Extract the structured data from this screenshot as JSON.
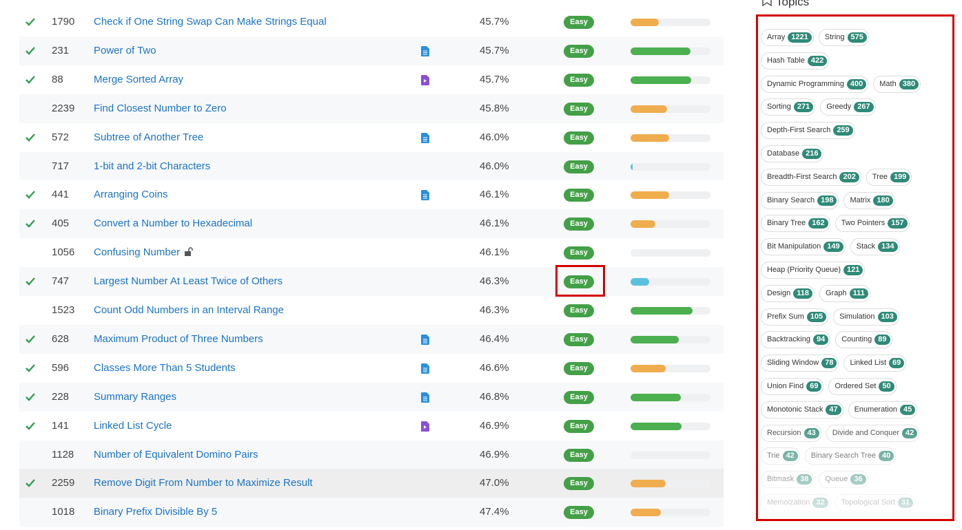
{
  "problems": [
    {
      "solved": true,
      "id": 1790,
      "title": "Check if One String Swap Can Make Strings Equal",
      "solution": null,
      "acceptance": "45.7%",
      "difficulty": "Easy",
      "frequency": 35,
      "frequency_color": "#f0ad4e"
    },
    {
      "solved": true,
      "id": 231,
      "title": "Power of Two",
      "solution": "article",
      "acceptance": "45.7%",
      "difficulty": "Easy",
      "frequency": 75,
      "frequency_color": "#4caf50"
    },
    {
      "solved": true,
      "id": 88,
      "title": "Merge Sorted Array",
      "solution": "video",
      "acceptance": "45.7%",
      "difficulty": "Easy",
      "frequency": 76,
      "frequency_color": "#4caf50"
    },
    {
      "solved": false,
      "id": 2239,
      "title": "Find Closest Number to Zero",
      "solution": null,
      "acceptance": "45.8%",
      "difficulty": "Easy",
      "frequency": 46,
      "frequency_color": "#f0ad4e"
    },
    {
      "solved": true,
      "id": 572,
      "title": "Subtree of Another Tree",
      "solution": "article",
      "acceptance": "46.0%",
      "difficulty": "Easy",
      "frequency": 48,
      "frequency_color": "#f0ad4e"
    },
    {
      "solved": false,
      "id": 717,
      "title": "1-bit and 2-bit Characters",
      "solution": null,
      "acceptance": "46.0%",
      "difficulty": "Easy",
      "frequency": 3,
      "frequency_color": "#5bc0de"
    },
    {
      "solved": true,
      "id": 441,
      "title": "Arranging Coins",
      "solution": "article",
      "acceptance": "46.1%",
      "difficulty": "Easy",
      "frequency": 48,
      "frequency_color": "#f0ad4e"
    },
    {
      "solved": true,
      "id": 405,
      "title": "Convert a Number to Hexadecimal",
      "solution": null,
      "acceptance": "46.1%",
      "difficulty": "Easy",
      "frequency": 31,
      "frequency_color": "#f0ad4e"
    },
    {
      "solved": false,
      "id": 1056,
      "title": "Confusing Number",
      "locked": true,
      "solution": null,
      "acceptance": "46.1%",
      "difficulty": "Easy",
      "frequency": 0,
      "frequency_color": "#f0ad4e"
    },
    {
      "solved": true,
      "id": 747,
      "title": "Largest Number At Least Twice of Others",
      "solution": null,
      "acceptance": "46.3%",
      "difficulty": "Easy",
      "frequency": 23,
      "frequency_color": "#5bc0de"
    },
    {
      "solved": false,
      "id": 1523,
      "title": "Count Odd Numbers in an Interval Range",
      "solution": null,
      "acceptance": "46.3%",
      "difficulty": "Easy",
      "frequency": 78,
      "frequency_color": "#4caf50"
    },
    {
      "solved": true,
      "id": 628,
      "title": "Maximum Product of Three Numbers",
      "solution": "article",
      "acceptance": "46.4%",
      "difficulty": "Easy",
      "frequency": 60,
      "frequency_color": "#4caf50"
    },
    {
      "solved": true,
      "id": 596,
      "title": "Classes More Than 5 Students",
      "solution": "article",
      "acceptance": "46.6%",
      "difficulty": "Easy",
      "frequency": 44,
      "frequency_color": "#f0ad4e"
    },
    {
      "solved": true,
      "id": 228,
      "title": "Summary Ranges",
      "solution": "article",
      "acceptance": "46.8%",
      "difficulty": "Easy",
      "frequency": 63,
      "frequency_color": "#4caf50"
    },
    {
      "solved": true,
      "id": 141,
      "title": "Linked List Cycle",
      "solution": "video",
      "acceptance": "46.9%",
      "difficulty": "Easy",
      "frequency": 64,
      "frequency_color": "#4caf50"
    },
    {
      "solved": false,
      "id": 1128,
      "title": "Number of Equivalent Domino Pairs",
      "solution": null,
      "acceptance": "46.9%",
      "difficulty": "Easy",
      "frequency": 0,
      "frequency_color": "#f0ad4e"
    },
    {
      "solved": true,
      "id": 2259,
      "title": "Remove Digit From Number to Maximize Result",
      "solution": null,
      "acceptance": "47.0%",
      "difficulty": "Easy",
      "frequency": 44,
      "frequency_color": "#f0ad4e"
    },
    {
      "solved": false,
      "id": 1018,
      "title": "Binary Prefix Divisible By 5",
      "solution": null,
      "acceptance": "47.4%",
      "difficulty": "Easy",
      "frequency": 38,
      "frequency_color": "#f0ad4e"
    }
  ],
  "topics_title": "Topics",
  "topics": [
    [
      {
        "name": "Array",
        "count": 1221
      },
      {
        "name": "String",
        "count": 575
      }
    ],
    [
      {
        "name": "Hash Table",
        "count": 422
      }
    ],
    [
      {
        "name": "Dynamic Programming",
        "count": 400
      },
      {
        "name": "Math",
        "count": 380
      }
    ],
    [
      {
        "name": "Sorting",
        "count": 271
      },
      {
        "name": "Greedy",
        "count": 267
      }
    ],
    [
      {
        "name": "Depth-First Search",
        "count": 259
      }
    ],
    [
      {
        "name": "Database",
        "count": 216
      }
    ],
    [
      {
        "name": "Breadth-First Search",
        "count": 202
      },
      {
        "name": "Tree",
        "count": 199
      }
    ],
    [
      {
        "name": "Binary Search",
        "count": 198
      },
      {
        "name": "Matrix",
        "count": 180
      }
    ],
    [
      {
        "name": "Binary Tree",
        "count": 162
      },
      {
        "name": "Two Pointers",
        "count": 157
      }
    ],
    [
      {
        "name": "Bit Manipulation",
        "count": 149
      },
      {
        "name": "Stack",
        "count": 134
      }
    ],
    [
      {
        "name": "Heap (Priority Queue)",
        "count": 121
      }
    ],
    [
      {
        "name": "Design",
        "count": 118
      },
      {
        "name": "Graph",
        "count": 111
      }
    ],
    [
      {
        "name": "Prefix Sum",
        "count": 105
      },
      {
        "name": "Simulation",
        "count": 103
      }
    ],
    [
      {
        "name": "Backtracking",
        "count": 94
      },
      {
        "name": "Counting",
        "count": 89
      }
    ],
    [
      {
        "name": "Sliding Window",
        "count": 78
      },
      {
        "name": "Linked List",
        "count": 69
      }
    ],
    [
      {
        "name": "Union Find",
        "count": 69
      },
      {
        "name": "Ordered Set",
        "count": 50
      }
    ],
    [
      {
        "name": "Monotonic Stack",
        "count": 47
      },
      {
        "name": "Enumeration",
        "count": 45
      }
    ],
    [
      {
        "name": "Recursion",
        "count": 43
      },
      {
        "name": "Divide and Conquer",
        "count": 42
      }
    ],
    [
      {
        "name": "Trie",
        "count": 42
      },
      {
        "name": "Binary Search Tree",
        "count": 40
      }
    ],
    [
      {
        "name": "Bitmask",
        "count": 38
      },
      {
        "name": "Queue",
        "count": 36
      }
    ],
    [
      {
        "name": "Memoization",
        "count": 32
      },
      {
        "name": "Topological Sort",
        "count": 31
      }
    ]
  ]
}
